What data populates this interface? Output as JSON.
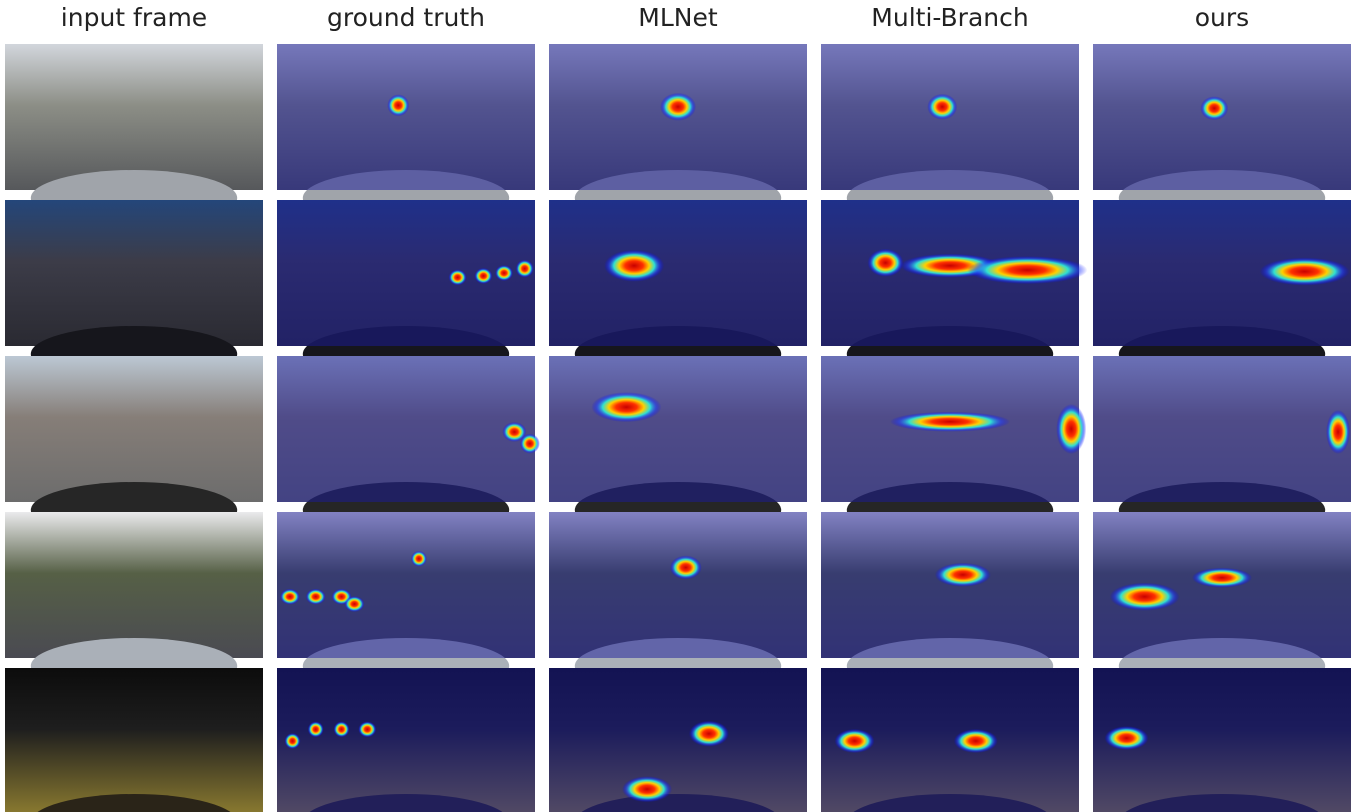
{
  "columns": [
    "input frame",
    "ground truth",
    "MLNet",
    "Multi-Branch",
    "ours"
  ]
}
